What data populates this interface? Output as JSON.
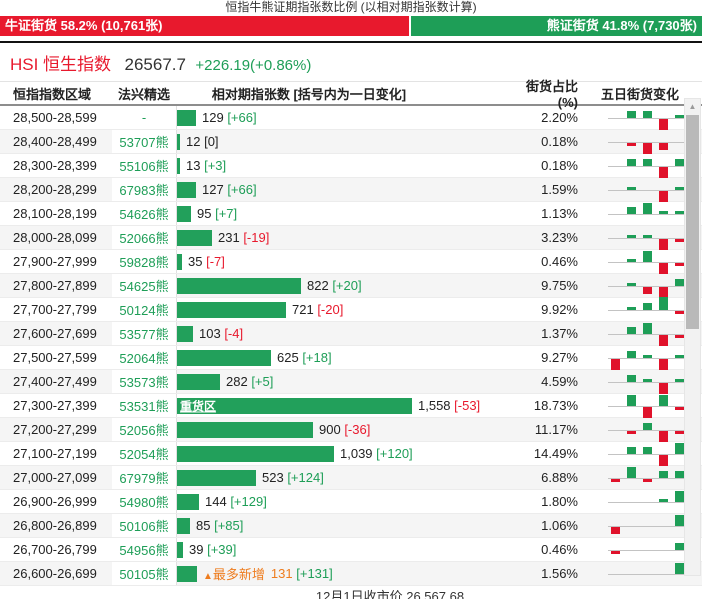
{
  "title": "恒指牛熊证期指张数比例 (以相对期指张数计算)",
  "ratio_bar": {
    "bull_label": "牛证街货 58.2% (10,761张)",
    "bull_pct": 58.2,
    "bear_label": "熊证街货 41.8% (7,730张)",
    "bear_pct": 41.8
  },
  "index": {
    "name": "HSI 恒生指数",
    "value": "26567.7",
    "change": "+226.19(+0.86%)"
  },
  "colors": {
    "bull_red": "#e8192d",
    "bear_green": "#1e9e57",
    "bar_green": "#22a05b",
    "positive_green": "#1e9e57",
    "negative_red": "#e8192d",
    "highlight_orange": "#ee7c1e"
  },
  "table": {
    "headers": [
      "恒指指数区域",
      "法兴精选",
      "相对期指张数 [括号内为一日变化]",
      "街货占比(%)",
      "五日街货变化"
    ],
    "max_value": 1558,
    "heavy_zone_label": "重货区",
    "most_new_label": "最多新增",
    "most_new_icon": "▲",
    "rows": [
      {
        "range": "28,500-28,599",
        "pick": "-",
        "value": 129,
        "value_text": "129",
        "change": "[+66]",
        "dir": "up",
        "pct": "2.20%",
        "spark": [
          0,
          2,
          2,
          -3,
          1
        ]
      },
      {
        "range": "28,400-28,499",
        "pick": "53707熊",
        "value": 12,
        "value_text": "12",
        "change": "[0]",
        "dir": "zero",
        "pct": "0.18%",
        "spark": [
          0,
          -1,
          -3,
          -2,
          0
        ]
      },
      {
        "range": "28,300-28,399",
        "pick": "55106熊",
        "value": 13,
        "value_text": "13",
        "change": "[+3]",
        "dir": "up",
        "pct": "0.18%",
        "spark": [
          0,
          2,
          2,
          -3,
          2
        ]
      },
      {
        "range": "28,200-28,299",
        "pick": "67983熊",
        "value": 127,
        "value_text": "127",
        "change": "[+66]",
        "dir": "up",
        "pct": "1.59%",
        "spark": [
          0,
          1,
          0,
          -3,
          1
        ]
      },
      {
        "range": "28,100-28,199",
        "pick": "54626熊",
        "value": 95,
        "value_text": "95",
        "change": "[+7]",
        "dir": "up",
        "pct": "1.13%",
        "spark": [
          0,
          2,
          3,
          1,
          1
        ]
      },
      {
        "range": "28,000-28,099",
        "pick": "52066熊",
        "value": 231,
        "value_text": "231",
        "change": "[-19]",
        "dir": "down",
        "pct": "3.23%",
        "spark": [
          0,
          1,
          1,
          -3,
          -1
        ]
      },
      {
        "range": "27,900-27,999",
        "pick": "59828熊",
        "value": 35,
        "value_text": "35",
        "change": "[-7]",
        "dir": "down",
        "pct": "0.46%",
        "spark": [
          0,
          1,
          3,
          -3,
          -1
        ]
      },
      {
        "range": "27,800-27,899",
        "pick": "54625熊",
        "value": 822,
        "value_text": "822",
        "change": "[+20]",
        "dir": "up",
        "pct": "9.75%",
        "spark": [
          0,
          1,
          -2,
          -3,
          2
        ]
      },
      {
        "range": "27,700-27,799",
        "pick": "50124熊",
        "value": 721,
        "value_text": "721",
        "change": "[-20]",
        "dir": "down",
        "pct": "9.92%",
        "spark": [
          0,
          1,
          2,
          4,
          -1
        ]
      },
      {
        "range": "27,600-27,699",
        "pick": "53577熊",
        "value": 103,
        "value_text": "103",
        "change": "[-4]",
        "dir": "down",
        "pct": "1.37%",
        "spark": [
          0,
          2,
          3,
          -3,
          -1
        ]
      },
      {
        "range": "27,500-27,599",
        "pick": "52064熊",
        "value": 625,
        "value_text": "625",
        "change": "[+18]",
        "dir": "up",
        "pct": "9.27%",
        "spark": [
          -3,
          2,
          1,
          -3,
          1
        ]
      },
      {
        "range": "27,400-27,499",
        "pick": "53573熊",
        "value": 282,
        "value_text": "282",
        "change": "[+5]",
        "dir": "up",
        "pct": "4.59%",
        "spark": [
          0,
          2,
          1,
          -3,
          1
        ]
      },
      {
        "range": "27,300-27,399",
        "pick": "53531熊",
        "value": 1558,
        "value_text": "1,558",
        "change": "[-53]",
        "dir": "down",
        "pct": "18.73%",
        "spark": [
          0,
          3,
          -3,
          3,
          -1
        ],
        "heavy": true
      },
      {
        "range": "27,200-27,299",
        "pick": "52056熊",
        "value": 900,
        "value_text": "900",
        "change": "[-36]",
        "dir": "down",
        "pct": "11.17%",
        "spark": [
          0,
          -1,
          2,
          -3,
          -1
        ]
      },
      {
        "range": "27,100-27,199",
        "pick": "52054熊",
        "value": 1039,
        "value_text": "1,039",
        "change": "[+120]",
        "dir": "up",
        "pct": "14.49%",
        "spark": [
          0,
          2,
          2,
          -3,
          3
        ]
      },
      {
        "range": "27,000-27,099",
        "pick": "67979熊",
        "value": 523,
        "value_text": "523",
        "change": "[+124]",
        "dir": "up",
        "pct": "6.88%",
        "spark": [
          -1,
          3,
          -1,
          2,
          2
        ]
      },
      {
        "range": "26,900-26,999",
        "pick": "54980熊",
        "value": 144,
        "value_text": "144",
        "change": "[+129]",
        "dir": "up",
        "pct": "1.80%",
        "spark": [
          0,
          0,
          0,
          1,
          3
        ]
      },
      {
        "range": "26,800-26,899",
        "pick": "50106熊",
        "value": 85,
        "value_text": "85",
        "change": "[+85]",
        "dir": "up",
        "pct": "1.06%",
        "spark": [
          -2,
          0,
          0,
          0,
          3
        ]
      },
      {
        "range": "26,700-26,799",
        "pick": "54956熊",
        "value": 39,
        "value_text": "39",
        "change": "[+39]",
        "dir": "up",
        "pct": "0.46%",
        "spark": [
          -1,
          0,
          0,
          0,
          2
        ]
      },
      {
        "range": "26,600-26,699",
        "pick": "50105熊",
        "value": 131,
        "value_text": "131",
        "change": "[+131]",
        "dir": "up",
        "pct": "1.56%",
        "spark": [
          0,
          0,
          0,
          0,
          3
        ],
        "most_new": true
      }
    ]
  },
  "scrollbar": {
    "up_arrow": "▲"
  },
  "footer": "12月1日收市价 26,567.68"
}
